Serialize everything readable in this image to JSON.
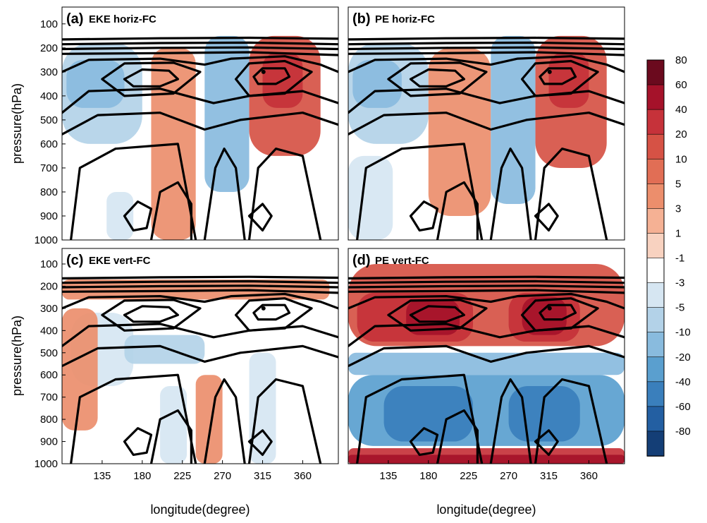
{
  "chart_data": {
    "type": "heatmap",
    "x": {
      "label": "longitude(degree)",
      "ticks": [
        135,
        180,
        225,
        270,
        315,
        360
      ],
      "range": [
        90,
        400
      ]
    },
    "y": {
      "label": "pressure(hPa)",
      "ticks": [
        100,
        200,
        300,
        400,
        500,
        600,
        700,
        800,
        900,
        1000
      ],
      "range": [
        1000,
        30
      ],
      "inverted": true
    },
    "colorbar": {
      "levels": [
        "80",
        "60",
        "40",
        "20",
        "10",
        "5",
        "3",
        "1",
        "-1",
        "-3",
        "-5",
        "-10",
        "-20",
        "-40",
        "-60",
        "-80"
      ],
      "colors": [
        "#6b0a1e",
        "#a5122a",
        "#c6323a",
        "#d65245",
        "#e16e55",
        "#ec8e6c",
        "#f5b194",
        "#f8d2c0",
        "#ffffff",
        "#d6e6f2",
        "#b3d2e8",
        "#89bbde",
        "#5a9fcf",
        "#3a7fbc",
        "#235fa2",
        "#143e76"
      ]
    },
    "panels": [
      {
        "letter": "(a)",
        "name": "EKE horiz-FC",
        "shading": [
          {
            "lon": [
              90,
              180
            ],
            "p": [
              180,
              600
            ],
            "value": -5
          },
          {
            "lon": [
              95,
              160
            ],
            "p": [
              250,
              450
            ],
            "value": -10
          },
          {
            "lon": [
              190,
              240
            ],
            "p": [
              200,
              1000
            ],
            "value": 3
          },
          {
            "lon": [
              250,
              300
            ],
            "p": [
              150,
              800
            ],
            "value": -10
          },
          {
            "lon": [
              300,
              380
            ],
            "p": [
              150,
              650
            ],
            "value": 10
          },
          {
            "lon": [
              315,
              360
            ],
            "p": [
              220,
              450
            ],
            "value": 20
          },
          {
            "lon": [
              140,
              170
            ],
            "p": [
              800,
              1000
            ],
            "value": -3
          }
        ]
      },
      {
        "letter": "(b)",
        "name": "PE horiz-FC",
        "shading": [
          {
            "lon": [
              90,
              180
            ],
            "p": [
              180,
              600
            ],
            "value": -5
          },
          {
            "lon": [
              95,
              150
            ],
            "p": [
              250,
              450
            ],
            "value": -10
          },
          {
            "lon": [
              180,
              250
            ],
            "p": [
              200,
              900
            ],
            "value": 3
          },
          {
            "lon": [
              250,
              300
            ],
            "p": [
              150,
              850
            ],
            "value": -10
          },
          {
            "lon": [
              300,
              380
            ],
            "p": [
              150,
              700
            ],
            "value": 10
          },
          {
            "lon": [
              315,
              360
            ],
            "p": [
              220,
              450
            ],
            "value": 20
          },
          {
            "lon": [
              90,
              140
            ],
            "p": [
              650,
              1000
            ],
            "value": -3
          }
        ]
      },
      {
        "letter": "(c)",
        "name": "EKE vert-FC",
        "shading": [
          {
            "lon": [
              90,
              390
            ],
            "p": [
              170,
              260
            ],
            "value": 3
          },
          {
            "lon": [
              100,
              170
            ],
            "p": [
              320,
              650
            ],
            "value": -3
          },
          {
            "lon": [
              160,
              250
            ],
            "p": [
              420,
              550
            ],
            "value": -5
          },
          {
            "lon": [
              240,
              270
            ],
            "p": [
              600,
              1000
            ],
            "value": 3
          },
          {
            "lon": [
              90,
              130
            ],
            "p": [
              300,
              850
            ],
            "value": 3
          },
          {
            "lon": [
              200,
              230
            ],
            "p": [
              650,
              1000
            ],
            "value": -3
          },
          {
            "lon": [
              300,
              330
            ],
            "p": [
              500,
              1000
            ],
            "value": -3
          }
        ]
      },
      {
        "letter": "(d)",
        "name": "PE vert-FC",
        "shading": [
          {
            "lon": [
              90,
              400
            ],
            "p": [
              100,
              470
            ],
            "value": 10
          },
          {
            "lon": [
              100,
              230
            ],
            "p": [
              230,
              450
            ],
            "value": 20
          },
          {
            "lon": [
              155,
              215
            ],
            "p": [
              260,
              420
            ],
            "value": 40
          },
          {
            "lon": [
              270,
              350
            ],
            "p": [
              230,
              450
            ],
            "value": 20
          },
          {
            "lon": [
              285,
              335
            ],
            "p": [
              250,
              420
            ],
            "value": 40
          },
          {
            "lon": [
              90,
              400
            ],
            "p": [
              500,
              600
            ],
            "value": -10
          },
          {
            "lon": [
              90,
              400
            ],
            "p": [
              600,
              920
            ],
            "value": -20
          },
          {
            "lon": [
              130,
              230
            ],
            "p": [
              650,
              900
            ],
            "value": -40
          },
          {
            "lon": [
              270,
              350
            ],
            "p": [
              650,
              900
            ],
            "value": -40
          },
          {
            "lon": [
              90,
              400
            ],
            "p": [
              930,
              1000
            ],
            "value": 20
          },
          {
            "lon": [
              90,
              400
            ],
            "p": [
              960,
              1000
            ],
            "value": 40
          }
        ]
      }
    ]
  }
}
